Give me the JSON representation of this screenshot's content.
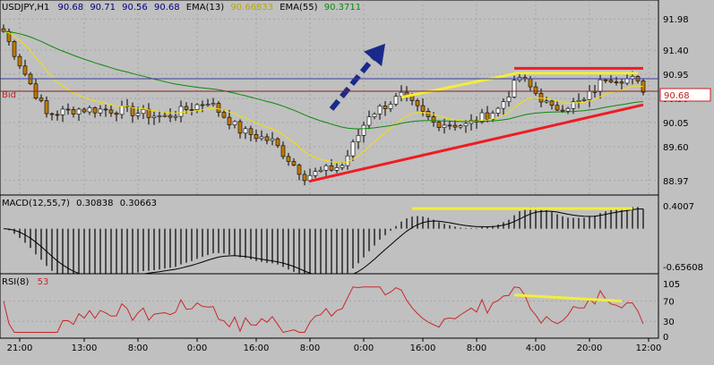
{
  "colors": {
    "panel_bg": "#c0c0c0",
    "axis_bg": "#ffffff",
    "frame": "#000000",
    "grid": "#888888",
    "candle_up": "#000000",
    "candle_down": "#c07a00",
    "ema13": "#f4e000",
    "ema55": "#0a8a0a",
    "bid": "#8a2020",
    "ask": "#3a3aa0",
    "trend_red": "#ee1c24",
    "trend_yellow": "#f2ee3a",
    "arrow": "#1a2a8a",
    "macd": "#000000",
    "rsi": "#c8282a"
  },
  "chart_data": [
    {
      "type": "candlestick",
      "header": {
        "symbol": "USDJPY,H1",
        "ohlc": [
          "90.68",
          "90.71",
          "90.56",
          "90.68"
        ],
        "ema13_label": "EMA(13)",
        "ema13_value": "90.66833",
        "ema55_label": "EMA(55)",
        "ema55_value": "90.3711"
      },
      "bid_label": "Bid",
      "bid_value": 90.68,
      "bid_value_label": "90.68",
      "ylim": [
        88.8,
        92.2
      ],
      "yticks": [
        "91.98",
        "91.40",
        "90.95",
        "90.50",
        "90.05",
        "89.60",
        "88.97"
      ],
      "grid": true,
      "series": [
        {
          "kind": "ohlc",
          "bars": 120
        },
        {
          "name": "EMA(13)",
          "kind": "line"
        },
        {
          "name": "EMA(55)",
          "kind": "line"
        }
      ],
      "annotations": [
        {
          "type": "line",
          "color": "red",
          "from": [
            57,
            88.96
          ],
          "to": [
            119,
            90.38
          ]
        },
        {
          "type": "line",
          "color": "red",
          "from": [
            95,
            91.06
          ],
          "to": [
            119,
            91.06
          ]
        },
        {
          "type": "line",
          "color": "yellow",
          "from": [
            74,
            90.52
          ],
          "to": [
            96,
            90.98
          ]
        },
        {
          "type": "line",
          "color": "yellow",
          "from": [
            96,
            90.97
          ],
          "to": [
            118,
            90.97
          ]
        },
        {
          "type": "arrow",
          "color": "blue",
          "from": [
            61,
            90.3
          ],
          "to": [
            71,
            91.52
          ]
        }
      ]
    },
    {
      "type": "histogram",
      "title": "MACD(12,55,7)",
      "values_label": [
        "0.30838",
        "0.30663"
      ],
      "yticks": [
        "0.4007",
        "-0.65608"
      ],
      "ylim": [
        -0.72,
        0.46
      ],
      "series": [
        {
          "name": "MACD",
          "kind": "histogram"
        },
        {
          "name": "signal",
          "kind": "line"
        }
      ],
      "annotations": [
        {
          "type": "line",
          "color": "yellow",
          "from": [
            76,
            0.35
          ],
          "to": [
            117,
            0.35
          ]
        }
      ]
    },
    {
      "type": "line",
      "title": "RSI(8)",
      "value_label": "53",
      "yticks": [
        "105",
        "70",
        "30",
        "0"
      ],
      "ylim": [
        0,
        110
      ],
      "series": [
        {
          "name": "RSI",
          "kind": "line"
        }
      ],
      "annotations": [
        {
          "type": "line",
          "color": "yellow",
          "from": [
            95,
            82
          ],
          "to": [
            115,
            70
          ]
        }
      ]
    }
  ],
  "xaxis": {
    "ticks": [
      {
        "label": "21:00",
        "bar": 3
      },
      {
        "label": "13:00",
        "bar": 15
      },
      {
        "label": "8:00",
        "bar": 25
      },
      {
        "label": "0:00",
        "bar": 36
      },
      {
        "label": "16:00",
        "bar": 47
      },
      {
        "label": "8:00",
        "bar": 57
      },
      {
        "label": "0:00",
        "bar": 67
      },
      {
        "label": "16:00",
        "bar": 78
      },
      {
        "label": "8:00",
        "bar": 88
      },
      {
        "label": "4:00",
        "bar": 99
      },
      {
        "label": "20:00",
        "bar": 109
      },
      {
        "label": "12:00",
        "bar": 120
      }
    ]
  }
}
